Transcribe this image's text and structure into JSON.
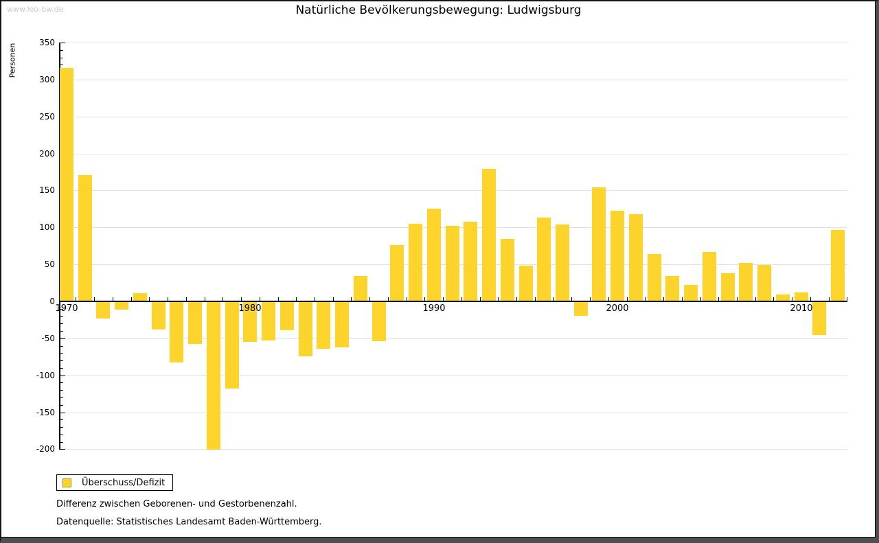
{
  "watermark": "www.leo-bw.de",
  "title": "Natürliche Bevölkerungsbewegung: Ludwigsburg",
  "legend": {
    "label": "Überschuss/Defizit",
    "swatch_color": "#fcd42c"
  },
  "footnotes": [
    "Differenz zwischen Geborenen- und Gestorbenenzahl.",
    "Datenquelle: Statistisches Landesamt Baden-Württemberg."
  ],
  "colors": {
    "bar": "#fcd42c",
    "gridline": "#e2e2e2",
    "axis": "#000000",
    "watermark": "#c9c9c9"
  },
  "chart_data": {
    "type": "bar",
    "title": "Natürliche Bevölkerungsbewegung: Ludwigsburg",
    "xlabel": "",
    "ylabel": "Personen",
    "ylim": [
      -200,
      350
    ],
    "ytick_step": 50,
    "yticks": [
      350,
      300,
      250,
      200,
      150,
      100,
      50,
      0,
      -50,
      -100,
      -150,
      -200
    ],
    "grid": true,
    "legend_position": "bottom-left",
    "series_name": "Überschuss/Defizit",
    "x": [
      1970,
      1971,
      1972,
      1973,
      1974,
      1975,
      1976,
      1977,
      1978,
      1979,
      1980,
      1981,
      1982,
      1983,
      1984,
      1985,
      1986,
      1987,
      1988,
      1989,
      1990,
      1991,
      1992,
      1993,
      1994,
      1995,
      1996,
      1997,
      1998,
      1999,
      2000,
      2001,
      2002,
      2003,
      2004,
      2005,
      2006,
      2007,
      2008,
      2009,
      2010,
      2011,
      2012
    ],
    "values": [
      315,
      170,
      -22,
      -10,
      10,
      -37,
      -82,
      -57,
      -200,
      -117,
      -54,
      -52,
      -38,
      -73,
      -63,
      -61,
      33,
      -53,
      75,
      104,
      124,
      101,
      107,
      178,
      84,
      47,
      112,
      103,
      -19,
      153,
      122,
      117,
      63,
      33,
      21,
      66,
      37,
      51,
      48,
      8,
      11,
      -45,
      96
    ],
    "x_tick_labels": [
      {
        "year": 1970,
        "label": "1970"
      },
      {
        "year": 1980,
        "label": "1980"
      },
      {
        "year": 1990,
        "label": "1990"
      },
      {
        "year": 2000,
        "label": "2000"
      },
      {
        "year": 2010,
        "label": "2010"
      }
    ]
  }
}
